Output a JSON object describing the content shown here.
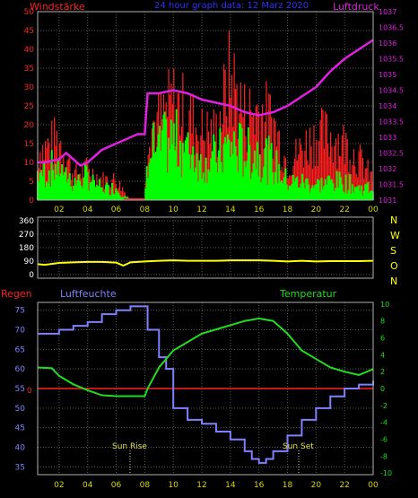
{
  "header": {
    "left_label": "Windstärke",
    "center_label": "24 hour graph data: 12 Marz 2020",
    "right_label": "Luftdruck"
  },
  "time_axis": {
    "hour_labels": [
      "02",
      "04",
      "06",
      "08",
      "10",
      "12",
      "14",
      "16",
      "18",
      "20",
      "22",
      "00"
    ]
  },
  "colors": {
    "background": "#000000",
    "grid": "#5a5a5a",
    "wind_gust": "#ff2020",
    "wind_avg": "#00ff00",
    "pressure": "#e020e0",
    "direction": "#ffff00",
    "humidity": "#8080ff",
    "temperature": "#20dd20",
    "rain": "#ff2020",
    "frame": "#b0b0b0"
  },
  "panel2": {
    "right_letters": [
      "N",
      "W",
      "S",
      "O",
      "N"
    ]
  },
  "panel3": {
    "left_label": "Regen",
    "humidity_label": "Luftfeuchte",
    "temperature_label": "Temperatur",
    "sun_rise_label": "Sun Rise",
    "sun_set_label": "Sun Set"
  },
  "chart_data": [
    {
      "type": "bar",
      "name": "wind_and_pressure",
      "x_unit": "hour",
      "xlim": [
        0.5,
        24
      ],
      "left_axis": {
        "ticks": [
          0,
          5,
          10,
          15,
          20,
          25,
          30,
          35,
          40,
          45,
          50
        ],
        "ylim": [
          0,
          50
        ]
      },
      "right_axis": {
        "ticks": [
          "1031",
          "1031.5",
          "1032",
          "1032.5",
          "1033",
          "1033.5",
          "1034",
          "1034.5",
          "1035",
          "1035.5",
          "1036",
          "1036.5",
          "1037"
        ],
        "ylim": [
          1031,
          1037
        ]
      },
      "series": [
        {
          "name": "Windstärke",
          "role": "wind_gust_peaks",
          "x": [
            1,
            2,
            3,
            4,
            5,
            6,
            7,
            8,
            8.2,
            9,
            10,
            11,
            12,
            13,
            14,
            15,
            16,
            17,
            18,
            19,
            20,
            21,
            22,
            23,
            24
          ],
          "values": [
            20,
            24,
            10,
            12,
            8,
            8,
            0,
            0,
            30,
            30,
            38,
            33,
            26,
            26,
            48,
            33,
            35,
            30,
            14,
            20,
            25,
            25,
            22,
            16,
            8
          ]
        },
        {
          "name": "wind_avg",
          "role": "wind_average",
          "x": [
            1,
            2,
            3,
            4,
            5,
            6,
            7,
            8,
            8.2,
            9,
            10,
            11,
            12,
            13,
            14,
            15,
            16,
            17,
            18,
            19,
            20,
            21,
            22,
            23,
            24
          ],
          "values": [
            9,
            12,
            6,
            8,
            4,
            4,
            0,
            0,
            16,
            18,
            20,
            18,
            14,
            14,
            18,
            16,
            16,
            12,
            6,
            6,
            5,
            6,
            6,
            4,
            4
          ]
        },
        {
          "name": "Luftdruck",
          "role": "pressure",
          "x": [
            0.5,
            1,
            2,
            2.5,
            3,
            3.5,
            4,
            4.5,
            5,
            6,
            7,
            7.5,
            8,
            8.2,
            9,
            10,
            11,
            12,
            13,
            14,
            15,
            16,
            17,
            18,
            19,
            20,
            21,
            22,
            23,
            24
          ],
          "values": [
            1032.2,
            1032.2,
            1032.3,
            1032.5,
            1032.3,
            1032.1,
            1032.2,
            1032.4,
            1032.6,
            1032.8,
            1033.0,
            1033.1,
            1033.1,
            1034.4,
            1034.4,
            1034.5,
            1034.4,
            1034.2,
            1034.1,
            1034.0,
            1033.8,
            1033.7,
            1033.8,
            1034.0,
            1034.3,
            1034.6,
            1035.1,
            1035.5,
            1035.8,
            1036.1
          ]
        }
      ]
    },
    {
      "type": "line",
      "name": "wind_direction",
      "xlim": [
        0.5,
        24
      ],
      "y_ticks": [
        0,
        90,
        180,
        270,
        360
      ],
      "ylim": [
        0,
        360
      ],
      "series": [
        {
          "name": "direction",
          "x": [
            0.5,
            1,
            2,
            3,
            4,
            5,
            6,
            6.5,
            7,
            8,
            9,
            10,
            11,
            12,
            13,
            14,
            15,
            16,
            17,
            18,
            19,
            20,
            21,
            22,
            23,
            24
          ],
          "values": [
            70,
            65,
            78,
            82,
            85,
            85,
            80,
            60,
            82,
            88,
            92,
            95,
            92,
            92,
            92,
            95,
            95,
            95,
            92,
            88,
            92,
            88,
            90,
            90,
            90,
            92
          ]
        }
      ]
    },
    {
      "type": "line",
      "name": "humidity_temperature_rain",
      "xlim": [
        0.5,
        24
      ],
      "left_axis": {
        "ticks": [
          35,
          40,
          45,
          50,
          55,
          60,
          65,
          70,
          75
        ],
        "ylim": [
          33,
          77
        ]
      },
      "right_axis": {
        "ticks": [
          -10,
          -8,
          -6,
          -4,
          -2,
          0,
          2,
          4,
          6,
          8,
          10
        ],
        "ylim": [
          -10.2,
          10.2
        ]
      },
      "rain_zero_label": "0",
      "series": [
        {
          "name": "Luftfeuchte",
          "axis": "left",
          "x": [
            0.5,
            1.5,
            2,
            3,
            4,
            5,
            6,
            7,
            8,
            8.2,
            9,
            9.5,
            10,
            11,
            12,
            13,
            14,
            15,
            15.5,
            16,
            16.5,
            17,
            18,
            19,
            20,
            21,
            22,
            23,
            24
          ],
          "values": [
            69,
            69,
            70,
            71,
            72,
            74,
            75,
            76,
            76,
            70,
            63,
            60,
            50,
            47,
            46,
            44,
            42,
            39,
            37,
            36,
            37,
            39,
            43,
            47,
            50,
            53,
            55,
            56,
            57
          ]
        },
        {
          "name": "Temperatur",
          "axis": "right",
          "x": [
            0.5,
            1.5,
            2,
            3,
            4,
            5,
            6,
            7,
            8,
            8.2,
            9,
            10,
            11,
            12,
            13,
            14,
            15,
            16,
            17,
            18,
            19,
            20,
            21,
            22,
            23,
            24
          ],
          "values": [
            2.5,
            2.4,
            1.5,
            0.5,
            -0.2,
            -0.8,
            -0.9,
            -0.9,
            -0.9,
            0,
            2.5,
            4.5,
            5.5,
            6.5,
            7.0,
            7.5,
            8.0,
            8.3,
            8.0,
            6.5,
            4.5,
            3.5,
            2.5,
            2.0,
            1.6,
            2.3
          ]
        },
        {
          "name": "Regen",
          "axis": "right",
          "x": [
            0.5,
            24
          ],
          "values": [
            0,
            0
          ]
        }
      ]
    }
  ]
}
